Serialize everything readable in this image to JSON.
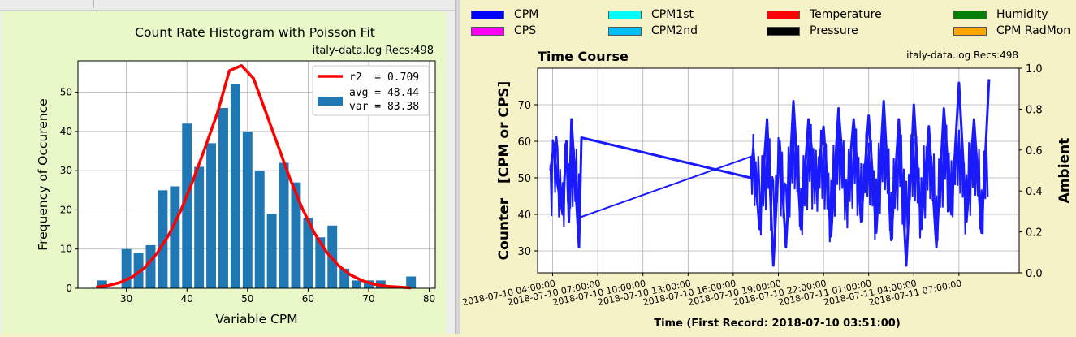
{
  "histogram": {
    "title": "Count Rate Histogram with Poisson Fit",
    "subtitle": "italy-data.log  Recs:498",
    "xlabel": "Variable CPM",
    "ylabel": "Frequency of Occurence",
    "legend": {
      "fit_label": "r2  = 0.709",
      "bar_label_avg": "avg = 48.44",
      "bar_label_var": "var = 83.38"
    },
    "colors": {
      "bars": "#1f77b4",
      "fit": "#ff0000",
      "background": "#e8f8c8"
    }
  },
  "timecourse": {
    "title": "Time Course",
    "subtitle": "italy-data.log  Recs:498",
    "ylabel_left": "Counter   [CPM or CPS]",
    "ylabel_right": "Ambient",
    "xlabel": "Time (First Record: 2018-07-10 03:51:00)",
    "legend": [
      {
        "label": "CPM",
        "color": "#0000ff"
      },
      {
        "label": "CPS",
        "color": "#ff00ff"
      },
      {
        "label": "CPM1st",
        "color": "#00ffff"
      },
      {
        "label": "CPM2nd",
        "color": "#00bfff"
      },
      {
        "label": "Temperature",
        "color": "#ff0000"
      },
      {
        "label": "Pressure",
        "color": "#000000"
      },
      {
        "label": "Humidity",
        "color": "#008000"
      },
      {
        "label": "CPM RadMon",
        "color": "#ffa500"
      }
    ]
  },
  "chart_data": [
    {
      "type": "bar",
      "title": "Count Rate Histogram with Poisson Fit",
      "xlabel": "Variable CPM",
      "ylabel": "Frequency of Occurence",
      "xlim": [
        22,
        81
      ],
      "ylim": [
        0,
        58
      ],
      "xticks": [
        30,
        40,
        50,
        60,
        70,
        80
      ],
      "yticks": [
        0,
        10,
        20,
        30,
        40,
        50
      ],
      "grid": true,
      "legend_position": "top-right",
      "x": [
        26,
        30,
        32,
        34,
        36,
        38,
        40,
        42,
        44,
        46,
        48,
        50,
        52,
        54,
        56,
        58,
        60,
        62,
        64,
        66,
        68,
        70,
        72,
        74,
        77
      ],
      "values": [
        2,
        10,
        9,
        11,
        25,
        26,
        42,
        31,
        37,
        46,
        52,
        40,
        30,
        19,
        32,
        27,
        18,
        13,
        16,
        5,
        2,
        2,
        2,
        0,
        3
      ],
      "series": [
        {
          "name": "r2  = 0.709",
          "type": "line",
          "x": [
            25,
            27,
            29,
            31,
            33,
            35,
            37,
            39,
            41,
            43,
            45,
            47,
            49,
            51,
            53,
            55,
            57,
            59,
            61,
            63,
            65,
            67,
            69,
            71,
            73,
            75,
            77
          ],
          "values": [
            0.3,
            0.7,
            1.5,
            2.9,
            5.2,
            8.8,
            13.6,
            19.9,
            27.5,
            35.9,
            44.6,
            55.5,
            56.8,
            53.5,
            45.0,
            36.5,
            28.0,
            20.5,
            14.2,
            9.3,
            5.8,
            3.4,
            1.9,
            1.0,
            0.5,
            0.3,
            0.1
          ]
        }
      ]
    },
    {
      "type": "line",
      "title": "Time Course",
      "xlabel": "Time (First Record: 2018-07-10 03:51:00)",
      "ylabel": "Counter   [CPM or CPS]",
      "ylabel_right": "Ambient",
      "ylim": [
        24,
        80
      ],
      "ylim_right": [
        0.0,
        1.0
      ],
      "yticks": [
        30,
        40,
        50,
        60,
        70
      ],
      "yticks_right": [
        "0.0",
        "0.2",
        "0.4",
        "0.6",
        "0.8",
        "1.0"
      ],
      "xlim": [
        "2018-07-10 03:00:00",
        "2018-07-11 11:00:00"
      ],
      "xtick_labels": [
        "2018-07-10  04:00:00",
        "2018-07-10  07:00:00",
        "2018-07-10  10:00:00",
        "2018-07-10  13:00:00",
        "2018-07-10  16:00:00",
        "2018-07-10  19:00:00",
        "2018-07-10  22:00:00",
        "2018-07-11  01:00:00",
        "2018-07-11  04:00:00",
        "2018-07-11  07:00:00"
      ],
      "grid": true,
      "series": [
        {
          "name": "CPM",
          "color": "#0000ff",
          "x": [
            "2018-07-10 03:51",
            "2018-07-10 04:05",
            "2018-07-10 04:20",
            "2018-07-10 04:40",
            "2018-07-10 04:55",
            "2018-07-10 05:05",
            "2018-07-10 05:15",
            "2018-07-10 05:25",
            "2018-07-10 05:45",
            "2018-07-10 05:55",
            "2018-07-10 17:10",
            "2018-07-10 17:20",
            "2018-07-10 17:45",
            "2018-07-10 18:15",
            "2018-07-10 18:40",
            "2018-07-10 19:05",
            "2018-07-10 19:30",
            "2018-07-10 20:00",
            "2018-07-10 20:30",
            "2018-07-10 21:00",
            "2018-07-10 21:30",
            "2018-07-10 22:00",
            "2018-07-10 22:30",
            "2018-07-10 23:00",
            "2018-07-10 23:30",
            "2018-07-11 00:00",
            "2018-07-11 00:30",
            "2018-07-11 01:00",
            "2018-07-11 01:30",
            "2018-07-11 02:00",
            "2018-07-11 02:30",
            "2018-07-11 03:00",
            "2018-07-11 03:30",
            "2018-07-11 04:00",
            "2018-07-11 04:30",
            "2018-07-11 05:00",
            "2018-07-11 05:30",
            "2018-07-11 06:00",
            "2018-07-11 06:30",
            "2018-07-11 07:00",
            "2018-07-11 07:30",
            "2018-07-11 08:00",
            "2018-07-11 08:30",
            "2018-07-11 09:00"
          ],
          "values": [
            52,
            59,
            48,
            40,
            60,
            38,
            66,
            55,
            31,
            61,
            50,
            58,
            36,
            66,
            26,
            60,
            31,
            71,
            36,
            66,
            47,
            64,
            34,
            69,
            42,
            66,
            38,
            67,
            35,
            71,
            33,
            66,
            26,
            70,
            36,
            64,
            31,
            69,
            40,
            76,
            38,
            66,
            35,
            77
          ]
        }
      ]
    }
  ]
}
